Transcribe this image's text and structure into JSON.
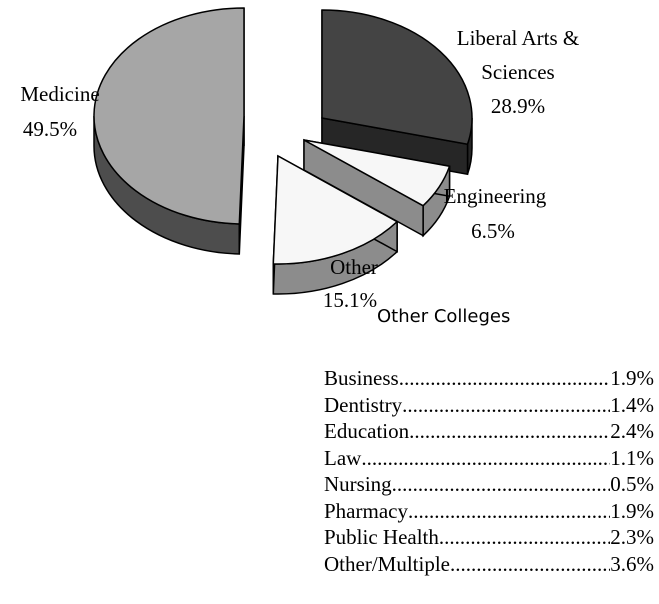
{
  "chart_data": {
    "type": "pie",
    "categories": [
      "Medicine",
      "Liberal Arts &\nSciences",
      "Engineering",
      "Other"
    ],
    "values": [
      49.5,
      28.9,
      6.5,
      15.1
    ],
    "value_labels": [
      "49.5%",
      "28.9%",
      "6.5%",
      "15.1%"
    ],
    "style": "3d-exploded",
    "colors": [
      "#a6a6a6",
      "#444444",
      "#f7f7f7",
      "#f7f7f7"
    ],
    "side_colors": [
      "#4d4d4d",
      "#262626",
      "#8c8c8c",
      "#8c8c8c"
    ]
  },
  "other_colleges": {
    "title": "Other Colleges",
    "rows": [
      {
        "name": "Business",
        "value": "1.9%"
      },
      {
        "name": "Dentistry",
        "value": "1.4%"
      },
      {
        "name": "Education",
        "value": "2.4%"
      },
      {
        "name": "Law",
        "value": "1.1%"
      },
      {
        "name": "Nursing",
        "value": "0.5%"
      },
      {
        "name": "Pharmacy",
        "value": "1.9%"
      },
      {
        "name": "Public Health",
        "value": "2.3%"
      },
      {
        "name": "Other/Multiple",
        "value": "3.6%"
      }
    ]
  }
}
